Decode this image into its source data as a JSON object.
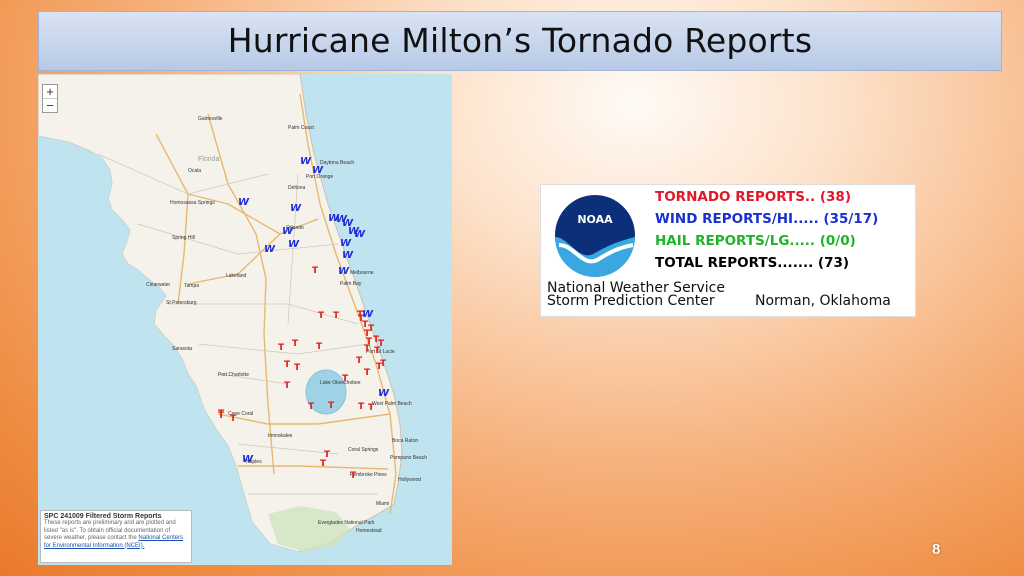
{
  "slide": {
    "title": "Hurricane Milton’s Tornado Reports",
    "page_number": "8"
  },
  "map": {
    "zoom_in": "+",
    "zoom_out": "−",
    "legend": {
      "title": "SPC 241009 Filtered Storm Reports",
      "body": "These reports are preliminary and are plotted and listed \"as is\". To obtain official documentation of severe weather, please contact the",
      "link": "National Centers for Environmental Information (NCEI)."
    },
    "cities": [
      "Gainesville",
      "Palm Coast",
      "Daytona Beach",
      "Port Orange",
      "Ocala",
      "Florida",
      "Deltona",
      "Homosassa Springs",
      "Orlando",
      "Spring Hill",
      "Lakeland",
      "Clearwater",
      "Tampa",
      "Melbourne",
      "Palm Bay",
      "St Petersburg",
      "Sarasota",
      "Port St Lucie",
      "Port Charlotte",
      "Lake Okeechobee",
      "West Palm Beach",
      "Cape Coral",
      "Immokalee",
      "Boca Raton",
      "Coral Springs",
      "Pompano Beach",
      "Naples",
      "Pembroke Pines",
      "Hollywood",
      "Miami",
      "Homestead",
      "Everglades National Park"
    ],
    "marker_labels": {
      "tornado": "T",
      "wind": "W"
    },
    "colors": {
      "tornado": "#e02020",
      "wind": "#1c2fd8",
      "land": "#f4f2ea",
      "water": "#bfe3ef",
      "park": "#cfe3c0"
    }
  },
  "noaa": {
    "logo_text": "NOAA",
    "reports": [
      {
        "label": "TORNADO REPORTS.. (38)",
        "color": "#e0182a"
      },
      {
        "label": "WIND REPORTS/HI..... (35/17)",
        "color": "#1a2fd0"
      },
      {
        "label": "HAIL REPORTS/LG..... (0/0)",
        "color": "#1fb32a"
      },
      {
        "label": "TOTAL REPORTS....... (73)",
        "color": "#000000"
      }
    ],
    "footer_line1": "National Weather Service",
    "footer_line2": "Storm Prediction Center",
    "footer_location": "Norman, Oklahoma"
  }
}
